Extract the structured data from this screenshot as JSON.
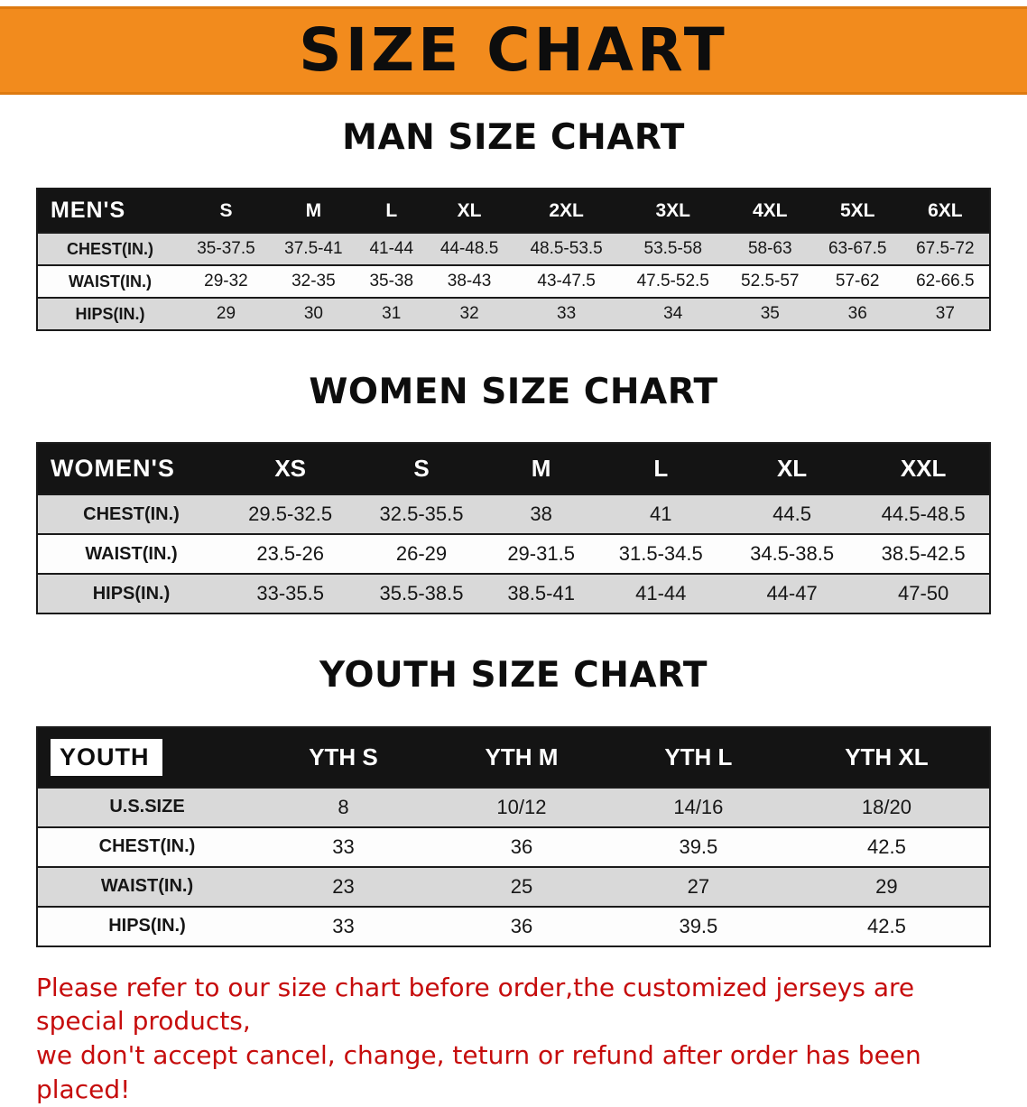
{
  "banner": {
    "title": "SIZE CHART"
  },
  "sections": [
    {
      "heading": "MAN SIZE CHART",
      "table": {
        "header": [
          "MEN'S",
          "S",
          "M",
          "L",
          "XL",
          "2XL",
          "3XL",
          "4XL",
          "5XL",
          "6XL"
        ],
        "rows": [
          [
            "CHEST(IN.)",
            "35-37.5",
            "37.5-41",
            "41-44",
            "44-48.5",
            "48.5-53.5",
            "53.5-58",
            "58-63",
            "63-67.5",
            "67.5-72"
          ],
          [
            "WAIST(IN.)",
            "29-32",
            "32-35",
            "35-38",
            "38-43",
            "43-47.5",
            "47.5-52.5",
            "52.5-57",
            "57-62",
            "62-66.5"
          ],
          [
            "HIPS(IN.)",
            "29",
            "30",
            "31",
            "32",
            "33",
            "34",
            "35",
            "36",
            "37"
          ]
        ]
      }
    },
    {
      "heading": "WOMEN SIZE CHART",
      "table": {
        "header": [
          "WOMEN'S",
          "XS",
          "S",
          "M",
          "L",
          "XL",
          "XXL"
        ],
        "rows": [
          [
            "CHEST(IN.)",
            "29.5-32.5",
            "32.5-35.5",
            "38",
            "41",
            "44.5",
            "44.5-48.5"
          ],
          [
            "WAIST(IN.)",
            "23.5-26",
            "26-29",
            "29-31.5",
            "31.5-34.5",
            "34.5-38.5",
            "38.5-42.5"
          ],
          [
            "HIPS(IN.)",
            "33-35.5",
            "35.5-38.5",
            "38.5-41",
            "41-44",
            "44-47",
            "47-50"
          ]
        ]
      }
    },
    {
      "heading": "YOUTH SIZE CHART",
      "table": {
        "header": [
          "YOUTH",
          "YTH S",
          "YTH M",
          "YTH L",
          "YTH XL"
        ],
        "rows": [
          [
            "U.S.SIZE",
            "8",
            "10/12",
            "14/16",
            "18/20"
          ],
          [
            "CHEST(IN.)",
            "33",
            "36",
            "39.5",
            "42.5"
          ],
          [
            "WAIST(IN.)",
            "23",
            "25",
            "27",
            "29"
          ],
          [
            "HIPS(IN.)",
            "33",
            "36",
            "39.5",
            "42.5"
          ]
        ]
      }
    }
  ],
  "disclaimer": {
    "line1": "Please refer to our size chart before order,the customized jerseys are special products,",
    "line2": "we don't accept cancel, change, teturn or refund after order has been placed!"
  },
  "colors": {
    "banner_orange": "#F28B1D",
    "table_header_black": "#141414",
    "row_gray": "#D9D9D9",
    "row_white": "#FDFDFD",
    "disclaimer_red": "#C60C0C"
  }
}
